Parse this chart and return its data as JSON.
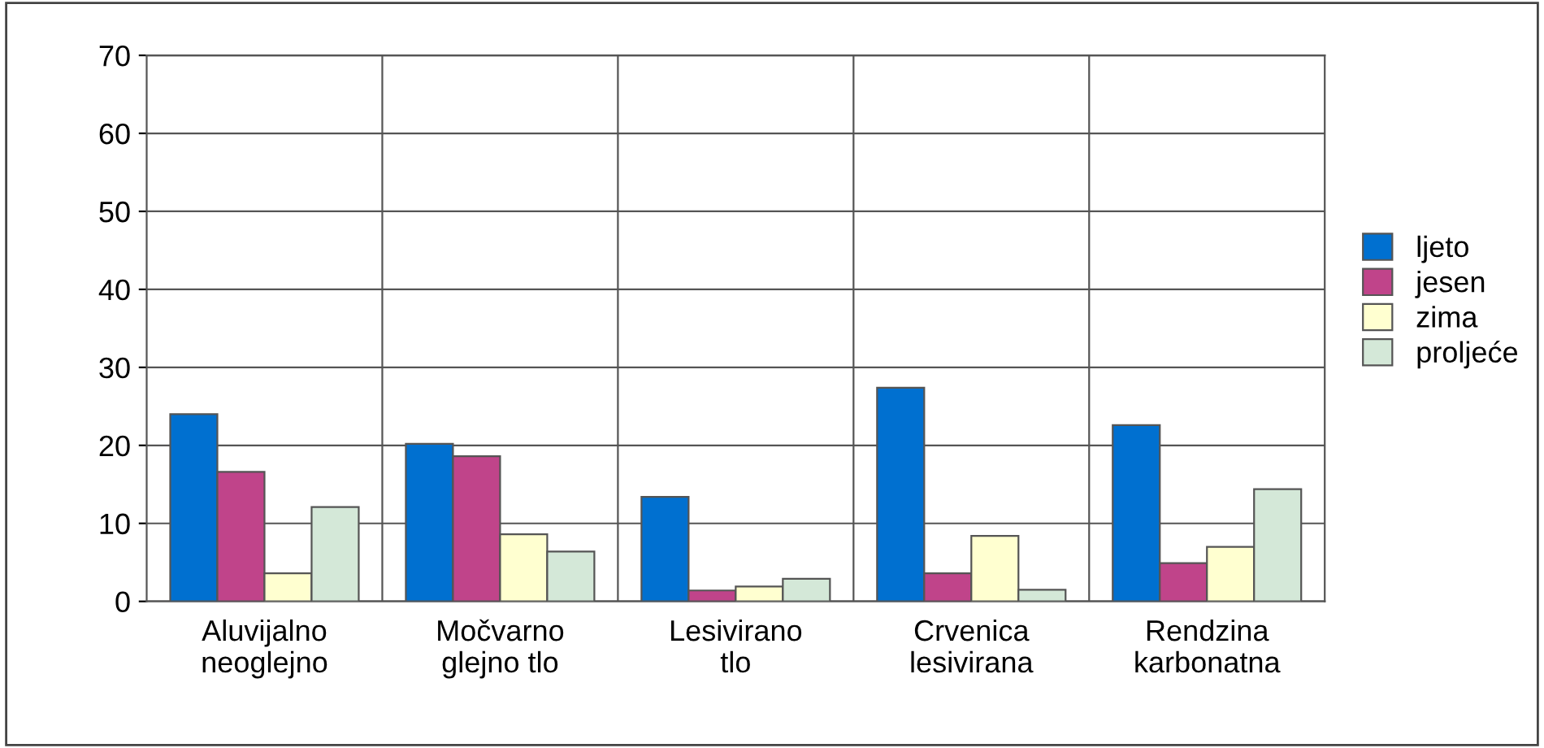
{
  "chart_data": {
    "type": "bar",
    "categories": [
      "Aluvijalno\nneoglejno",
      "Močvarno\nglejno tlo",
      "Lesivirano\ntlo",
      "Crvenica\nlesivirana",
      "Rendzina\nkarbonatna"
    ],
    "series": [
      {
        "name": "ljeto",
        "color": "#0070d0",
        "values": [
          24.0,
          20.2,
          13.4,
          27.4,
          22.6
        ]
      },
      {
        "name": "jesen",
        "color": "#c0448a",
        "values": [
          16.6,
          18.6,
          1.4,
          3.6,
          4.9
        ]
      },
      {
        "name": "zima",
        "color": "#ffffd0",
        "values": [
          3.6,
          8.6,
          1.9,
          8.4,
          7.0
        ]
      },
      {
        "name": "proljeće",
        "color": "#d4e8d8",
        "values": [
          12.1,
          6.4,
          2.9,
          1.5,
          14.4
        ]
      }
    ],
    "ylim": [
      0,
      70
    ],
    "yticks": [
      0,
      10,
      20,
      30,
      40,
      50,
      60,
      70
    ],
    "grid": true,
    "legend": "right"
  }
}
